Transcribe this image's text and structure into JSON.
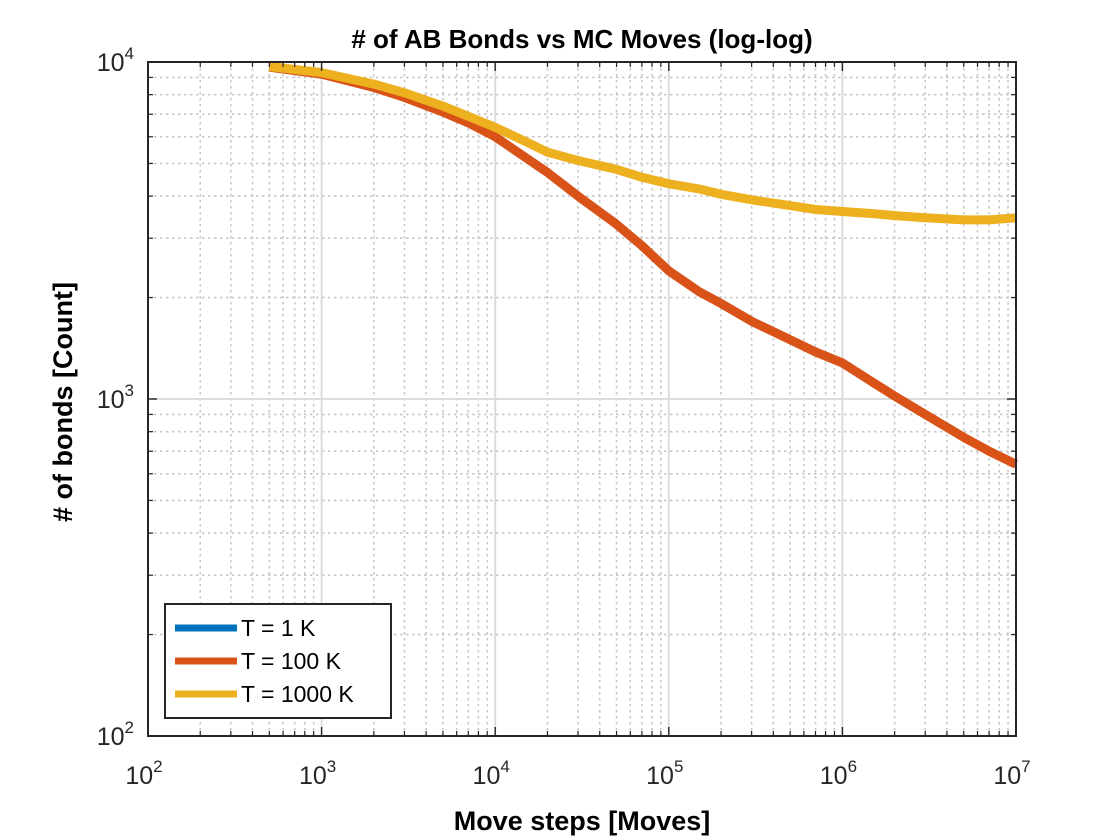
{
  "chart_data": {
    "type": "line",
    "title": "# of AB Bonds vs MC Moves (log-log)",
    "xlabel": "Move steps [Moves]",
    "ylabel": "# of bonds [Count]",
    "xscale": "log",
    "yscale": "log",
    "xlim": [
      100,
      10000000
    ],
    "ylim": [
      100,
      10000
    ],
    "grid": true,
    "minor_grid": true,
    "legend_position": "bottom-left",
    "xticks": [
      {
        "base": "10",
        "exp": "2"
      },
      {
        "base": "10",
        "exp": "3"
      },
      {
        "base": "10",
        "exp": "4"
      },
      {
        "base": "10",
        "exp": "5"
      },
      {
        "base": "10",
        "exp": "6"
      },
      {
        "base": "10",
        "exp": "7"
      }
    ],
    "yticks": [
      {
        "base": "10",
        "exp": "2"
      },
      {
        "base": "10",
        "exp": "3"
      },
      {
        "base": "10",
        "exp": "4"
      }
    ],
    "series": [
      {
        "name": "T = 1 K",
        "color": "#0072BD",
        "x": [],
        "y": []
      },
      {
        "name": "T = 100 K",
        "color": "#D95319",
        "x": [
          500,
          1000,
          2000,
          3000,
          5000,
          7000,
          10000,
          15000,
          20000,
          30000,
          50000,
          70000,
          100000,
          150000,
          200000,
          300000,
          500000,
          700000,
          1000000,
          1500000,
          2000000,
          3000000,
          5000000,
          7000000,
          10000000
        ],
        "y": [
          9650,
          9200,
          8400,
          7850,
          7100,
          6600,
          6000,
          5200,
          4700,
          4000,
          3300,
          2850,
          2400,
          2080,
          1920,
          1700,
          1500,
          1380,
          1280,
          1120,
          1020,
          900,
          770,
          700,
          640
        ]
      },
      {
        "name": "T = 1000 K",
        "color": "#EDB120",
        "x": [
          500,
          1000,
          2000,
          3000,
          5000,
          7000,
          10000,
          15000,
          20000,
          30000,
          50000,
          70000,
          100000,
          150000,
          200000,
          300000,
          500000,
          700000,
          1000000,
          1500000,
          2000000,
          3000000,
          5000000,
          7000000,
          10000000
        ],
        "y": [
          9700,
          9300,
          8600,
          8100,
          7400,
          6900,
          6400,
          5800,
          5400,
          5100,
          4800,
          4550,
          4350,
          4200,
          4050,
          3900,
          3750,
          3650,
          3600,
          3550,
          3500,
          3450,
          3400,
          3400,
          3450
        ]
      }
    ]
  }
}
